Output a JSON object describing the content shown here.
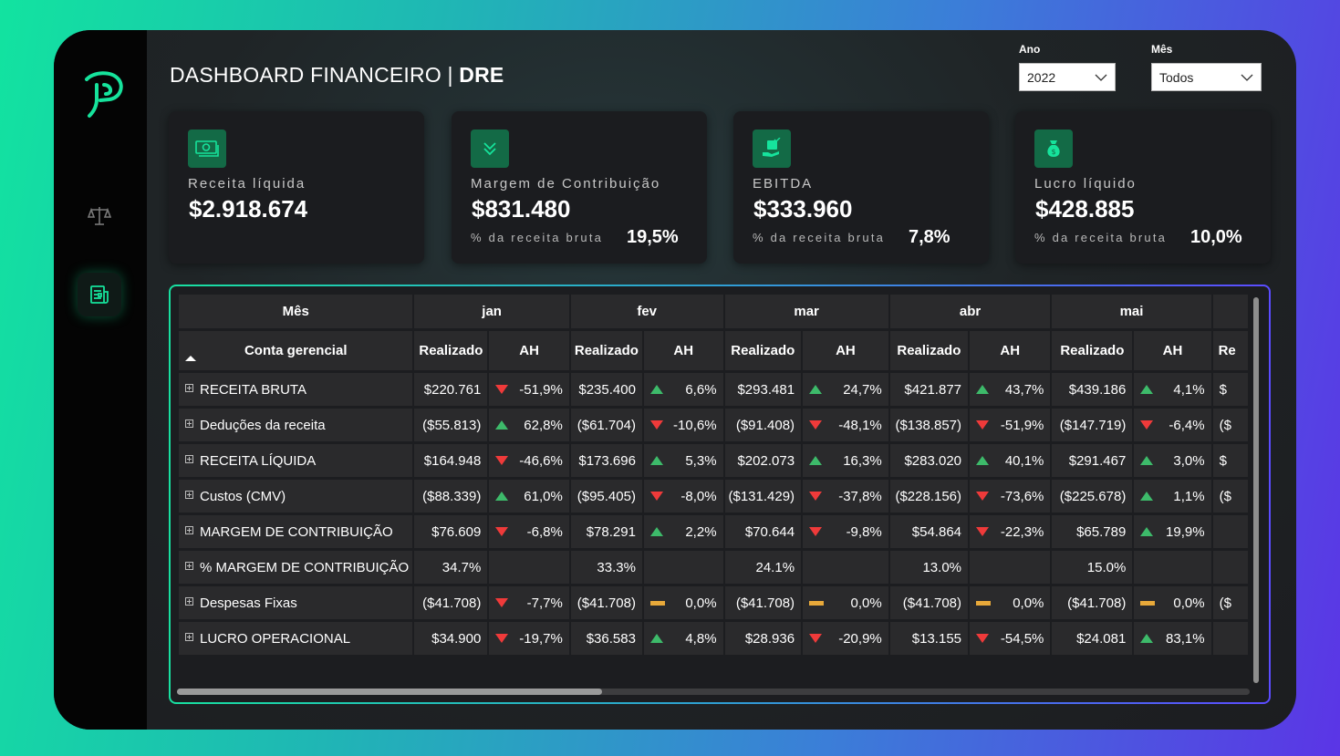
{
  "header": {
    "title_prefix": "DASHBOARD FINANCEIRO | ",
    "title_bold": "DRE"
  },
  "filters": {
    "ano": {
      "label": "Ano",
      "value": "2022"
    },
    "mes": {
      "label": "Mês",
      "value": "Todos"
    }
  },
  "cards": [
    {
      "icon": "cash-icon",
      "label": "Receita líquida",
      "value": "$2.918.674",
      "sub": "",
      "pct": ""
    },
    {
      "icon": "double-chevron-down-icon",
      "label": "Margem de Contribuição",
      "value": "$831.480",
      "sub": "% da receita bruta",
      "pct": "19,5%"
    },
    {
      "icon": "hand-money-icon",
      "label": "EBITDA",
      "value": "$333.960",
      "sub": "% da receita bruta",
      "pct": "7,8%"
    },
    {
      "icon": "money-bag-icon",
      "label": "Lucro líquido",
      "value": "$428.885",
      "sub": "% da receita bruta",
      "pct": "10,0%"
    }
  ],
  "table": {
    "corner_top": "Mês",
    "corner_bottom": "Conta gerencial",
    "months": [
      "jan",
      "fev",
      "mar",
      "abr",
      "mai"
    ],
    "sub_realizado": "Realizado",
    "sub_ah": "AH",
    "partial_col": "Re",
    "rows": [
      {
        "name": "RECEITA BRUTA",
        "cells": [
          [
            "$220.761",
            "down",
            "-51,9%"
          ],
          [
            "$235.400",
            "up",
            "6,6%"
          ],
          [
            "$293.481",
            "up",
            "24,7%"
          ],
          [
            "$421.877",
            "up",
            "43,7%"
          ],
          [
            "$439.186",
            "up",
            "4,1%"
          ]
        ],
        "partial": "$"
      },
      {
        "name": "Deduções da receita",
        "cells": [
          [
            "($55.813)",
            "up",
            "62,8%"
          ],
          [
            "($61.704)",
            "down",
            "-10,6%"
          ],
          [
            "($91.408)",
            "down",
            "-48,1%"
          ],
          [
            "($138.857)",
            "down",
            "-51,9%"
          ],
          [
            "($147.719)",
            "down",
            "-6,4%"
          ]
        ],
        "partial": "($"
      },
      {
        "name": "RECEITA LÍQUIDA",
        "cells": [
          [
            "$164.948",
            "down",
            "-46,6%"
          ],
          [
            "$173.696",
            "up",
            "5,3%"
          ],
          [
            "$202.073",
            "up",
            "16,3%"
          ],
          [
            "$283.020",
            "up",
            "40,1%"
          ],
          [
            "$291.467",
            "up",
            "3,0%"
          ]
        ],
        "partial": "$"
      },
      {
        "name": "Custos (CMV)",
        "cells": [
          [
            "($88.339)",
            "up",
            "61,0%"
          ],
          [
            "($95.405)",
            "down",
            "-8,0%"
          ],
          [
            "($131.429)",
            "down",
            "-37,8%"
          ],
          [
            "($228.156)",
            "down",
            "-73,6%"
          ],
          [
            "($225.678)",
            "up",
            "1,1%"
          ]
        ],
        "partial": "($"
      },
      {
        "name": "MARGEM DE CONTRIBUIÇÃO",
        "cells": [
          [
            "$76.609",
            "down",
            "-6,8%"
          ],
          [
            "$78.291",
            "up",
            "2,2%"
          ],
          [
            "$70.644",
            "down",
            "-9,8%"
          ],
          [
            "$54.864",
            "down",
            "-22,3%"
          ],
          [
            "$65.789",
            "up",
            "19,9%"
          ]
        ],
        "partial": ""
      },
      {
        "name": "% MARGEM DE CONTRIBUIÇÃO",
        "cells": [
          [
            "34.7%",
            "none",
            ""
          ],
          [
            "33.3%",
            "none",
            ""
          ],
          [
            "24.1%",
            "none",
            ""
          ],
          [
            "13.0%",
            "none",
            ""
          ],
          [
            "15.0%",
            "none",
            ""
          ]
        ],
        "partial": ""
      },
      {
        "name": "Despesas Fixas",
        "cells": [
          [
            "($41.708)",
            "down",
            "-7,7%"
          ],
          [
            "($41.708)",
            "flat",
            "0,0%"
          ],
          [
            "($41.708)",
            "flat",
            "0,0%"
          ],
          [
            "($41.708)",
            "flat",
            "0,0%"
          ],
          [
            "($41.708)",
            "flat",
            "0,0%"
          ]
        ],
        "partial": "($"
      },
      {
        "name": "LUCRO OPERACIONAL",
        "cells": [
          [
            "$34.900",
            "down",
            "-19,7%"
          ],
          [
            "$36.583",
            "up",
            "4,8%"
          ],
          [
            "$28.936",
            "down",
            "-20,9%"
          ],
          [
            "$13.155",
            "down",
            "-54,5%"
          ],
          [
            "$24.081",
            "up",
            "83,1%"
          ]
        ],
        "partial": ""
      }
    ]
  },
  "colors": {
    "accent": "#12e3a0",
    "up": "#3dba6a",
    "down": "#ef3a3a",
    "flat": "#e8a93a"
  }
}
